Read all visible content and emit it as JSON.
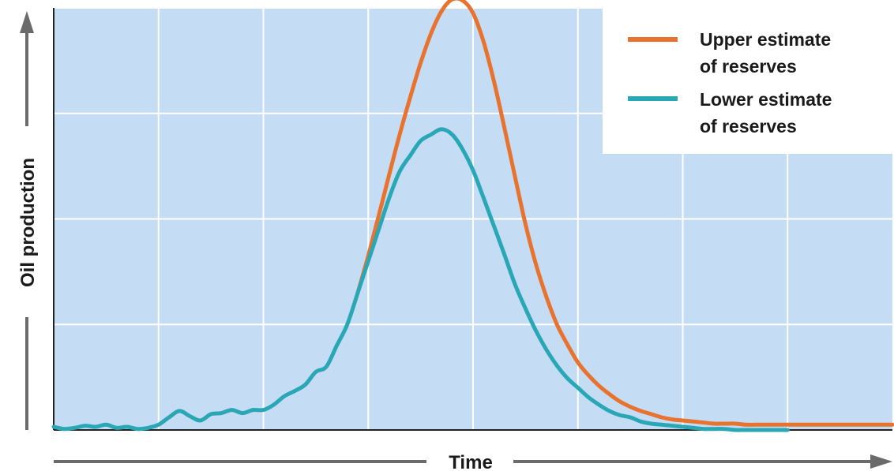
{
  "chart_data": {
    "type": "line",
    "title": "",
    "xlabel": "Time",
    "ylabel": "Oil production",
    "x_ticks_labeled": false,
    "y_ticks_labeled": false,
    "xlim": [
      0,
      8
    ],
    "ylim": [
      0,
      4
    ],
    "grid": true,
    "colors": {
      "plot_background": "#c4dcf4",
      "grid": "#ffffff",
      "axis": "#222222",
      "arrow": "#6b6b6b"
    },
    "legend": {
      "placement": "top-right",
      "entries": [
        {
          "line1": "Upper estimate",
          "line2": "of reserves",
          "color": "#e8732f"
        },
        {
          "line1": "Lower estimate",
          "line2": "of reserves",
          "color": "#2aa7b5"
        }
      ]
    },
    "history": {
      "name": "",
      "color": "#2aa7b5",
      "x": [
        0,
        0.1,
        0.2,
        0.3,
        0.4,
        0.5,
        0.6,
        0.7,
        0.8,
        0.9,
        1.0,
        1.1,
        1.2,
        1.3,
        1.4,
        1.5,
        1.6,
        1.7,
        1.8,
        1.9,
        2.0,
        2.1,
        2.2,
        2.3,
        2.4,
        2.5,
        2.6,
        2.7,
        2.8,
        2.9,
        3.0,
        3.1,
        3.2,
        3.3,
        3.4,
        3.5,
        3.6,
        3.7,
        3.8,
        3.9,
        4.0,
        4.1,
        4.2,
        4.3,
        4.4,
        4.5,
        4.6,
        4.7,
        4.8,
        4.9,
        5.0,
        5.1,
        5.2,
        5.3,
        5.4,
        5.5,
        5.6,
        5.7,
        5.8,
        5.9,
        6.0,
        6.1,
        6.2,
        6.3,
        6.4,
        6.5,
        6.6,
        6.7,
        6.8,
        6.9,
        7.0,
        7.1,
        7.2,
        7.3,
        7.4,
        7.5,
        7.6,
        7.7,
        7.8,
        7.9,
        8.0
      ],
      "values": [
        0.03,
        0.01,
        0.02,
        0.04,
        0.03,
        0.05,
        0.02,
        0.03,
        0.01,
        0.02,
        0.05,
        0.12,
        0.18,
        0.13,
        0.09,
        0.15,
        0.16,
        0.19,
        0.16,
        0.19,
        0.19,
        0.24,
        0.32,
        0.37,
        0.43,
        0.55,
        0.6,
        0.8,
        1.0,
        1.3,
        1.6,
        1.9,
        2.2,
        2.45,
        2.6,
        2.74,
        2.8,
        2.85,
        2.8,
        2.66,
        2.46,
        2.2,
        1.93,
        1.66,
        1.38,
        1.15,
        0.94,
        0.76,
        0.61,
        0.49,
        0.4,
        0.31,
        0.24,
        0.18,
        0.14,
        0.12,
        0.08,
        0.06,
        0.05,
        0.04,
        0.03,
        0.02,
        0.01,
        0.01,
        0.01,
        0.0,
        0.0,
        0.0,
        0.0,
        0.0,
        0.0,
        0.0,
        0.0,
        0.0,
        0.0,
        0.0,
        0.0,
        0.0,
        0.0,
        0.0,
        0.0
      ]
    },
    "series": [
      {
        "name": "Upper estimate of reserves",
        "color": "#e8732f",
        "x": [
          2.9,
          3.0,
          3.1,
          3.2,
          3.3,
          3.4,
          3.5,
          3.6,
          3.7,
          3.8,
          3.9,
          4.0,
          4.1,
          4.2,
          4.3,
          4.4,
          4.5,
          4.6,
          4.7,
          4.8,
          4.9,
          5.0,
          5.1,
          5.2,
          5.3,
          5.4,
          5.5,
          5.6,
          5.7,
          5.8,
          5.9,
          6.0,
          6.1,
          6.2,
          6.3,
          6.4,
          6.5,
          6.6,
          6.7,
          6.8,
          6.9,
          7.0,
          7.1,
          7.2,
          7.3,
          7.4,
          7.5,
          7.6,
          7.7,
          7.8,
          7.9,
          8.0
        ],
        "values": [
          1.3,
          1.65,
          2.03,
          2.42,
          2.8,
          3.15,
          3.48,
          3.76,
          3.97,
          4.08,
          4.07,
          3.95,
          3.68,
          3.3,
          2.86,
          2.4,
          1.95,
          1.57,
          1.26,
          1.0,
          0.81,
          0.64,
          0.52,
          0.42,
          0.34,
          0.27,
          0.22,
          0.18,
          0.15,
          0.12,
          0.1,
          0.09,
          0.08,
          0.07,
          0.06,
          0.06,
          0.06,
          0.05,
          0.05,
          0.05,
          0.05,
          0.05,
          0.05,
          0.05,
          0.05,
          0.05,
          0.05,
          0.05,
          0.05,
          0.05,
          0.05,
          0.05
        ]
      },
      {
        "name": "Lower estimate of reserves",
        "color": "#2aa7b5",
        "x": [
          2.9,
          3.0,
          3.1,
          3.2,
          3.3,
          3.4,
          3.5,
          3.6,
          3.7,
          3.8,
          3.9,
          4.0,
          4.1,
          4.2,
          4.3,
          4.4,
          4.5,
          4.6,
          4.7,
          4.8,
          4.9,
          5.0,
          5.1,
          5.2,
          5.3,
          5.4,
          5.5,
          5.6,
          5.7,
          5.8,
          5.9,
          6.0,
          6.1,
          6.2,
          6.3,
          6.4,
          6.5,
          6.6,
          6.7,
          6.8,
          6.9,
          7.0
        ],
        "values": [
          1.3,
          1.6,
          1.9,
          2.2,
          2.45,
          2.6,
          2.74,
          2.8,
          2.85,
          2.8,
          2.66,
          2.46,
          2.2,
          1.93,
          1.66,
          1.38,
          1.15,
          0.94,
          0.76,
          0.61,
          0.49,
          0.4,
          0.31,
          0.24,
          0.18,
          0.14,
          0.12,
          0.08,
          0.06,
          0.05,
          0.04,
          0.03,
          0.02,
          0.01,
          0.01,
          0.01,
          0.0,
          0.0,
          0.0,
          0.0,
          0.0,
          0.0
        ]
      }
    ]
  }
}
